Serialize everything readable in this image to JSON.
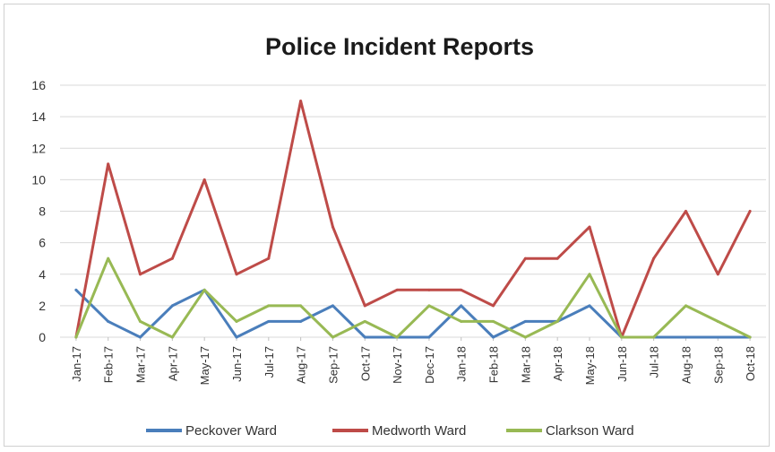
{
  "chart_data": {
    "type": "line",
    "title": "Police Incident Reports",
    "xlabel": "",
    "ylabel": "",
    "ylim": [
      0,
      16
    ],
    "yticks": [
      0,
      2,
      4,
      6,
      8,
      10,
      12,
      14,
      16
    ],
    "grid": true,
    "legend_position": "bottom",
    "categories": [
      "Jan-17",
      "Feb-17",
      "Mar-17",
      "Apr-17",
      "May-17",
      "Jun-17",
      "Jul-17",
      "Aug-17",
      "Sep-17",
      "Oct-17",
      "Nov-17",
      "Dec-17",
      "Jan-18",
      "Feb-18",
      "Mar-18",
      "Apr-18",
      "May-18",
      "Jun-18",
      "Jul-18",
      "Aug-18",
      "Sep-18",
      "Oct-18"
    ],
    "series": [
      {
        "name": "Peckover Ward",
        "color": "#4a7ebb",
        "values": [
          3,
          1,
          0,
          2,
          3,
          0,
          1,
          1,
          2,
          0,
          0,
          0,
          2,
          0,
          1,
          1,
          2,
          0,
          0,
          0,
          0,
          0
        ]
      },
      {
        "name": "Medworth Ward",
        "color": "#be4b48",
        "values": [
          0,
          11,
          4,
          5,
          10,
          4,
          5,
          15,
          7,
          2,
          3,
          3,
          3,
          2,
          5,
          5,
          7,
          0,
          5,
          8,
          4,
          8
        ]
      },
      {
        "name": "Clarkson Ward",
        "color": "#98b954",
        "values": [
          0,
          5,
          1,
          0,
          3,
          1,
          2,
          2,
          0,
          1,
          0,
          2,
          1,
          1,
          0,
          1,
          4,
          0,
          0,
          2,
          1,
          0
        ]
      }
    ]
  }
}
